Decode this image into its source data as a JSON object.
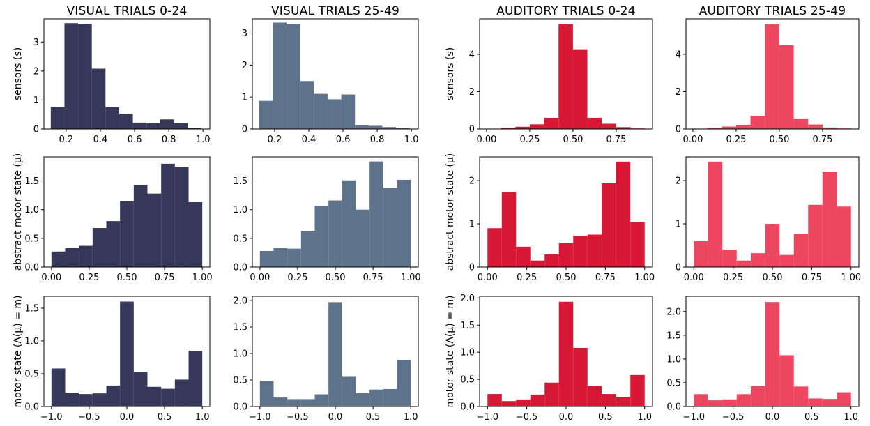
{
  "figure": {
    "columns": [
      {
        "title": "VISUAL TRIALS 0-24",
        "color": "#363859"
      },
      {
        "title": "VISUAL TRIALS 25-49",
        "color": "#5d738c"
      },
      {
        "title": "AUDITORY TRIALS 0-24",
        "color": "#d71834"
      },
      {
        "title": "AUDITORY TRIALS 25-49",
        "color": "#ec4660"
      }
    ],
    "row_ylabels": [
      "sensors (s)",
      "abstract motor state (μ)",
      "motor state (Λ(μ) = m)"
    ]
  },
  "chart_data": [
    {
      "type": "bar",
      "row": 0,
      "col": 0,
      "title": "VISUAL TRIALS 0-24",
      "ylabel": "sensors (s)",
      "xlim": [
        0.07,
        1.04
      ],
      "ylim": [
        0,
        3.8
      ],
      "xticks": [
        0.2,
        0.4,
        0.6,
        0.8,
        1.0
      ],
      "xtick_labels": [
        "0.2",
        "0.4",
        "0.6",
        "0.8",
        "1.0"
      ],
      "yticks": [
        0,
        1,
        2,
        3
      ],
      "ytick_labels": [
        "0",
        "1",
        "2",
        "3"
      ],
      "bin_edges": [
        0.11,
        0.19,
        0.27,
        0.35,
        0.43,
        0.51,
        0.59,
        0.67,
        0.75,
        0.83,
        0.91,
        0.99
      ],
      "values": [
        0.75,
        3.65,
        3.63,
        2.08,
        0.75,
        0.53,
        0.22,
        0.2,
        0.33,
        0.2,
        0.03
      ]
    },
    {
      "type": "bar",
      "row": 0,
      "col": 1,
      "title": "VISUAL TRIALS 25-49",
      "ylabel": "",
      "xlim": [
        0.07,
        1.04
      ],
      "ylim": [
        0,
        3.45
      ],
      "xticks": [
        0.2,
        0.4,
        0.6,
        0.8,
        1.0
      ],
      "xtick_labels": [
        "0.2",
        "0.4",
        "0.6",
        "0.8",
        "1.0"
      ],
      "yticks": [
        0,
        1,
        2,
        3
      ],
      "ytick_labels": [
        "0",
        "1",
        "2",
        "3"
      ],
      "bin_edges": [
        0.11,
        0.19,
        0.27,
        0.35,
        0.43,
        0.51,
        0.59,
        0.67,
        0.75,
        0.83,
        0.91,
        0.99
      ],
      "values": [
        0.88,
        3.33,
        3.28,
        1.5,
        1.1,
        0.93,
        1.08,
        0.12,
        0.1,
        0.06,
        0.03
      ]
    },
    {
      "type": "bar",
      "row": 0,
      "col": 2,
      "title": "AUDITORY TRIALS 0-24",
      "ylabel": "sensors (s)",
      "xlim": [
        -0.04,
        0.96
      ],
      "ylim": [
        0,
        5.9
      ],
      "xticks": [
        0,
        0.25,
        0.5,
        0.75
      ],
      "xtick_labels": [
        "0.00",
        "0.25",
        "0.50",
        "0.75"
      ],
      "yticks": [
        0,
        2,
        4
      ],
      "ytick_labels": [
        "0",
        "2",
        "4"
      ],
      "bin_edges": [
        0.0,
        0.0833,
        0.1667,
        0.25,
        0.3333,
        0.4167,
        0.5,
        0.5833,
        0.6667,
        0.75,
        0.8333,
        0.9167
      ],
      "values": [
        0.02,
        0.05,
        0.12,
        0.25,
        0.6,
        5.6,
        4.27,
        0.6,
        0.28,
        0.1,
        0.03
      ]
    },
    {
      "type": "bar",
      "row": 0,
      "col": 3,
      "title": "AUDITORY TRIALS 25-49",
      "ylabel": "",
      "xlim": [
        -0.04,
        0.96
      ],
      "ylim": [
        0,
        5.9
      ],
      "xticks": [
        0,
        0.25,
        0.5,
        0.75
      ],
      "xtick_labels": [
        "0.00",
        "0.25",
        "0.50",
        "0.75"
      ],
      "yticks": [
        0,
        2,
        4
      ],
      "ytick_labels": [
        "0",
        "2",
        "4"
      ],
      "bin_edges": [
        0.0,
        0.0833,
        0.1667,
        0.25,
        0.3333,
        0.4167,
        0.5,
        0.5833,
        0.6667,
        0.75,
        0.8333,
        0.9167
      ],
      "values": [
        0.02,
        0.05,
        0.13,
        0.22,
        0.7,
        5.6,
        4.5,
        0.55,
        0.24,
        0.08,
        0.03
      ]
    },
    {
      "type": "bar",
      "row": 1,
      "col": 0,
      "title": "",
      "ylabel": "abstract motor state (μ)",
      "xlim": [
        -0.05,
        1.05
      ],
      "ylim": [
        0,
        1.92
      ],
      "xticks": [
        0,
        0.25,
        0.5,
        0.75,
        1.0
      ],
      "xtick_labels": [
        "0.00",
        "0.25",
        "0.50",
        "0.75",
        "1.00"
      ],
      "yticks": [
        0,
        0.5,
        1.0,
        1.5
      ],
      "ytick_labels": [
        "0.0",
        "0.5",
        "1.0",
        "1.5"
      ],
      "bin_edges": [
        0.0,
        0.0909,
        0.1818,
        0.2727,
        0.3636,
        0.4545,
        0.5455,
        0.6364,
        0.7273,
        0.8182,
        0.9091,
        1.0
      ],
      "values": [
        0.27,
        0.33,
        0.37,
        0.68,
        0.8,
        1.15,
        1.43,
        1.28,
        1.8,
        1.75,
        1.13
      ]
    },
    {
      "type": "bar",
      "row": 1,
      "col": 1,
      "title": "",
      "ylabel": "",
      "xlim": [
        -0.05,
        1.05
      ],
      "ylim": [
        0,
        1.92
      ],
      "xticks": [
        0,
        0.25,
        0.5,
        0.75,
        1.0
      ],
      "xtick_labels": [
        "0.00",
        "0.25",
        "0.50",
        "0.75",
        "1.00"
      ],
      "yticks": [
        0,
        0.5,
        1.0,
        1.5
      ],
      "ytick_labels": [
        "0.0",
        "0.5",
        "1.0",
        "1.5"
      ],
      "bin_edges": [
        0.0,
        0.0909,
        0.1818,
        0.2727,
        0.3636,
        0.4545,
        0.5455,
        0.6364,
        0.7273,
        0.8182,
        0.9091,
        1.0
      ],
      "values": [
        0.28,
        0.33,
        0.32,
        0.63,
        1.06,
        1.16,
        1.51,
        1.0,
        1.84,
        1.38,
        1.52
      ]
    },
    {
      "type": "bar",
      "row": 1,
      "col": 2,
      "title": "",
      "ylabel": "abstract motor state (μ)",
      "xlim": [
        -0.05,
        1.05
      ],
      "ylim": [
        0,
        2.55
      ],
      "xticks": [
        0,
        0.25,
        0.5,
        0.75,
        1.0
      ],
      "xtick_labels": [
        "0.00",
        "0.25",
        "0.50",
        "0.75",
        "1.00"
      ],
      "yticks": [
        0,
        1,
        2
      ],
      "ytick_labels": [
        "0",
        "1",
        "2"
      ],
      "bin_edges": [
        0.0,
        0.0909,
        0.1818,
        0.2727,
        0.3636,
        0.4545,
        0.5455,
        0.6364,
        0.7273,
        0.8182,
        0.9091,
        1.0
      ],
      "values": [
        0.9,
        1.73,
        0.47,
        0.15,
        0.29,
        0.55,
        0.72,
        0.75,
        1.94,
        2.44,
        1.04
      ]
    },
    {
      "type": "bar",
      "row": 1,
      "col": 3,
      "title": "",
      "ylabel": "",
      "xlim": [
        -0.05,
        1.05
      ],
      "ylim": [
        0,
        2.55
      ],
      "xticks": [
        0,
        0.25,
        0.5,
        0.75,
        1.0
      ],
      "xtick_labels": [
        "0.00",
        "0.25",
        "0.50",
        "0.75",
        "1.00"
      ],
      "yticks": [
        0,
        1,
        2
      ],
      "ytick_labels": [
        "0",
        "1",
        "2"
      ],
      "bin_edges": [
        0.0,
        0.0909,
        0.1818,
        0.2727,
        0.3636,
        0.4545,
        0.5455,
        0.6364,
        0.7273,
        0.8182,
        0.9091,
        1.0
      ],
      "values": [
        0.6,
        2.44,
        0.4,
        0.15,
        0.32,
        1.0,
        0.28,
        0.76,
        1.44,
        2.21,
        1.4
      ]
    },
    {
      "type": "bar",
      "row": 2,
      "col": 0,
      "title": "",
      "ylabel": "motor state (Λ(μ) = m)",
      "xlim": [
        -1.1,
        1.1
      ],
      "ylim": [
        0,
        1.68
      ],
      "xticks": [
        -1.0,
        -0.5,
        0.0,
        0.5,
        1.0
      ],
      "xtick_labels": [
        "−1.0",
        "−0.5",
        "0.0",
        "0.5",
        "1.0"
      ],
      "yticks": [
        0,
        0.5,
        1.0,
        1.5
      ],
      "ytick_labels": [
        "0.0",
        "0.5",
        "1.0",
        "1.5"
      ],
      "bin_edges": [
        -1.0,
        -0.8182,
        -0.6364,
        -0.4545,
        -0.2727,
        -0.0909,
        0.0909,
        0.2727,
        0.4545,
        0.6364,
        0.8182,
        1.0
      ],
      "values": [
        0.58,
        0.21,
        0.19,
        0.2,
        0.32,
        1.6,
        0.53,
        0.3,
        0.27,
        0.41,
        0.85
      ]
    },
    {
      "type": "bar",
      "row": 2,
      "col": 1,
      "title": "",
      "ylabel": "",
      "xlim": [
        -1.1,
        1.1
      ],
      "ylim": [
        0,
        2.08
      ],
      "xticks": [
        -1.0,
        -0.5,
        0.0,
        0.5,
        1.0
      ],
      "xtick_labels": [
        "−1.0",
        "−0.5",
        "0.0",
        "0.5",
        "1.0"
      ],
      "yticks": [
        0,
        0.5,
        1.0,
        1.5,
        2.0
      ],
      "ytick_labels": [
        "0.0",
        "0.5",
        "1.0",
        "1.5",
        "2.0"
      ],
      "bin_edges": [
        -1.0,
        -0.8182,
        -0.6364,
        -0.4545,
        -0.2727,
        -0.0909,
        0.0909,
        0.2727,
        0.4545,
        0.6364,
        0.8182,
        1.0
      ],
      "values": [
        0.48,
        0.17,
        0.14,
        0.14,
        0.23,
        1.97,
        0.56,
        0.25,
        0.32,
        0.33,
        0.88
      ]
    },
    {
      "type": "bar",
      "row": 2,
      "col": 2,
      "title": "",
      "ylabel": "motor state (Λ(μ) = m)",
      "xlim": [
        -1.1,
        1.1
      ],
      "ylim": [
        0,
        2.03
      ],
      "xticks": [
        -1.0,
        -0.5,
        0.0,
        0.5,
        1.0
      ],
      "xtick_labels": [
        "−1.0",
        "−0.5",
        "0.0",
        "0.5",
        "1.0"
      ],
      "yticks": [
        0,
        0.5,
        1.0,
        1.5,
        2.0
      ],
      "ytick_labels": [
        "0.0",
        "0.5",
        "1.0",
        "1.5",
        "2.0"
      ],
      "bin_edges": [
        -1.0,
        -0.8182,
        -0.6364,
        -0.4545,
        -0.2727,
        -0.0909,
        0.0909,
        0.2727,
        0.4545,
        0.6364,
        0.8182,
        1.0
      ],
      "values": [
        0.23,
        0.1,
        0.13,
        0.22,
        0.44,
        1.93,
        1.08,
        0.38,
        0.23,
        0.18,
        0.58
      ]
    },
    {
      "type": "bar",
      "row": 2,
      "col": 3,
      "title": "",
      "ylabel": "",
      "xlim": [
        -1.1,
        1.1
      ],
      "ylim": [
        0,
        2.32
      ],
      "xticks": [
        -1.0,
        -0.5,
        0.0,
        0.5,
        1.0
      ],
      "xtick_labels": [
        "−1.0",
        "−0.5",
        "0.0",
        "0.5",
        "1.0"
      ],
      "yticks": [
        0,
        0.5,
        1.0,
        1.5,
        2.0
      ],
      "ytick_labels": [
        "0.0",
        "0.5",
        "1.0",
        "1.5",
        "2.0"
      ],
      "bin_edges": [
        -1.0,
        -0.8182,
        -0.6364,
        -0.4545,
        -0.2727,
        -0.0909,
        0.0909,
        0.2727,
        0.4545,
        0.6364,
        0.8182,
        1.0
      ],
      "values": [
        0.26,
        0.13,
        0.15,
        0.26,
        0.43,
        2.2,
        1.08,
        0.42,
        0.17,
        0.16,
        0.3
      ]
    }
  ]
}
